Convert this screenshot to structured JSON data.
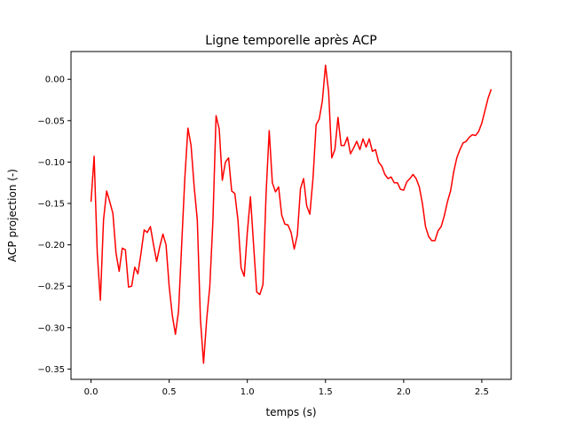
{
  "chart_data": {
    "type": "line",
    "title": "Ligne temporelle après ACP",
    "xlabel": "temps (s)",
    "ylabel": "ACP projection (-)",
    "xlim": [
      -0.128,
      2.688
    ],
    "ylim": [
      -0.3625,
      0.0335
    ],
    "x_ticks": [
      0.0,
      0.5,
      1.0,
      1.5,
      2.0,
      2.5
    ],
    "x_tick_labels": [
      "0.0",
      "0.5",
      "1.0",
      "1.5",
      "2.0",
      "2.5"
    ],
    "y_ticks": [
      0.0,
      -0.05,
      -0.1,
      -0.15,
      -0.2,
      -0.25,
      -0.3,
      -0.35
    ],
    "y_tick_labels": [
      "0.00",
      "−0.05",
      "−0.10",
      "−0.15",
      "−0.20",
      "−0.25",
      "−0.30",
      "−0.35"
    ],
    "grid": false,
    "series": [
      {
        "color": "#ff0000",
        "x": [
          0.0,
          0.02,
          0.04,
          0.06,
          0.08,
          0.1,
          0.12,
          0.14,
          0.16,
          0.18,
          0.2,
          0.22,
          0.24,
          0.26,
          0.28,
          0.3,
          0.32,
          0.34,
          0.36,
          0.38,
          0.4,
          0.42,
          0.44,
          0.46,
          0.48,
          0.5,
          0.52,
          0.54,
          0.56,
          0.58,
          0.6,
          0.62,
          0.64,
          0.66,
          0.68,
          0.7,
          0.72,
          0.74,
          0.76,
          0.78,
          0.8,
          0.82,
          0.84,
          0.86,
          0.88,
          0.9,
          0.92,
          0.94,
          0.96,
          0.98,
          1.0,
          1.02,
          1.04,
          1.06,
          1.08,
          1.1,
          1.12,
          1.14,
          1.16,
          1.18,
          1.2,
          1.22,
          1.24,
          1.26,
          1.28,
          1.3,
          1.32,
          1.34,
          1.36,
          1.38,
          1.4,
          1.42,
          1.44,
          1.46,
          1.48,
          1.5,
          1.52,
          1.54,
          1.56,
          1.58,
          1.6,
          1.62,
          1.64,
          1.66,
          1.68,
          1.7,
          1.72,
          1.74,
          1.76,
          1.78,
          1.8,
          1.82,
          1.84,
          1.86,
          1.88,
          1.9,
          1.92,
          1.94,
          1.96,
          1.98,
          2.0,
          2.02,
          2.04,
          2.06,
          2.08,
          2.1,
          2.12,
          2.14,
          2.16,
          2.18,
          2.2,
          2.22,
          2.24,
          2.26,
          2.28,
          2.3,
          2.32,
          2.34,
          2.36,
          2.38,
          2.4,
          2.42,
          2.44,
          2.46,
          2.48,
          2.5,
          2.52,
          2.54,
          2.56
        ],
        "y": [
          -0.148,
          -0.093,
          -0.21,
          -0.267,
          -0.17,
          -0.135,
          -0.148,
          -0.162,
          -0.21,
          -0.232,
          -0.204,
          -0.206,
          -0.251,
          -0.25,
          -0.227,
          -0.235,
          -0.21,
          -0.182,
          -0.185,
          -0.178,
          -0.2,
          -0.22,
          -0.202,
          -0.187,
          -0.2,
          -0.25,
          -0.285,
          -0.308,
          -0.28,
          -0.2,
          -0.12,
          -0.059,
          -0.08,
          -0.13,
          -0.17,
          -0.29,
          -0.343,
          -0.29,
          -0.25,
          -0.17,
          -0.044,
          -0.06,
          -0.122,
          -0.1,
          -0.095,
          -0.135,
          -0.138,
          -0.17,
          -0.228,
          -0.238,
          -0.185,
          -0.142,
          -0.2,
          -0.257,
          -0.26,
          -0.248,
          -0.138,
          -0.062,
          -0.125,
          -0.136,
          -0.13,
          -0.164,
          -0.175,
          -0.176,
          -0.185,
          -0.205,
          -0.188,
          -0.132,
          -0.12,
          -0.153,
          -0.163,
          -0.12,
          -0.055,
          -0.048,
          -0.026,
          0.017,
          -0.015,
          -0.095,
          -0.085,
          -0.046,
          -0.08,
          -0.08,
          -0.07,
          -0.09,
          -0.083,
          -0.075,
          -0.085,
          -0.072,
          -0.082,
          -0.072,
          -0.087,
          -0.085,
          -0.1,
          -0.105,
          -0.115,
          -0.12,
          -0.118,
          -0.125,
          -0.125,
          -0.133,
          -0.134,
          -0.124,
          -0.12,
          -0.115,
          -0.12,
          -0.13,
          -0.15,
          -0.178,
          -0.19,
          -0.195,
          -0.195,
          -0.183,
          -0.178,
          -0.165,
          -0.148,
          -0.135,
          -0.112,
          -0.095,
          -0.085,
          -0.077,
          -0.075,
          -0.07,
          -0.067,
          -0.068,
          -0.063,
          -0.053,
          -0.038,
          -0.023,
          -0.012
        ]
      }
    ]
  }
}
